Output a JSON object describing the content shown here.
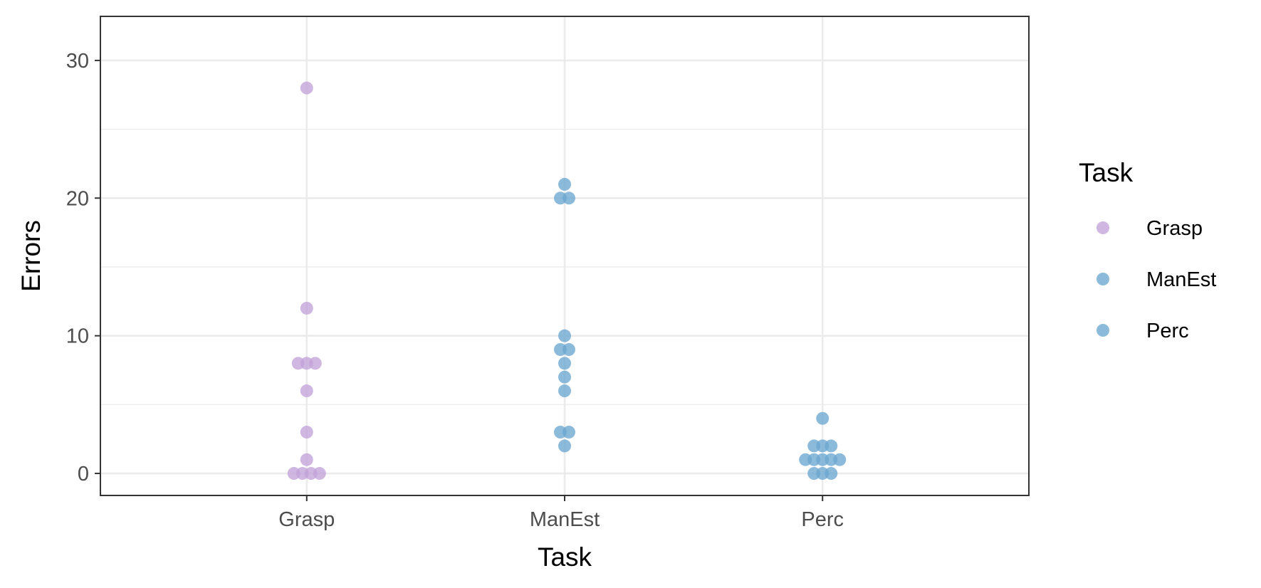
{
  "chart_data": {
    "type": "scatter",
    "xlabel": "Task",
    "ylabel": "Errors",
    "categories": [
      "Grasp",
      "ManEst",
      "Perc"
    ],
    "ylim": [
      -1.6,
      33.2
    ],
    "yticks": [
      0,
      10,
      20,
      30
    ],
    "grid": true,
    "legend": {
      "title": "Task",
      "placement": "right",
      "entries": [
        "Grasp",
        "ManEst",
        "Perc"
      ]
    },
    "series": [
      {
        "name": "Grasp",
        "color": "#c3a3d9",
        "category": "Grasp",
        "values": [
          28,
          12,
          8,
          8,
          8,
          6,
          3,
          1,
          0,
          0,
          0,
          0
        ]
      },
      {
        "name": "ManEst",
        "color": "#6ba6d0",
        "category": "ManEst",
        "values": [
          21,
          20,
          20,
          10,
          9,
          9,
          8,
          7,
          6,
          3,
          3,
          2
        ]
      },
      {
        "name": "Perc",
        "color": "#6ba6d0",
        "category": "Perc",
        "values": [
          4,
          2,
          2,
          2,
          1,
          1,
          1,
          1,
          1,
          0,
          0,
          0
        ]
      }
    ]
  }
}
